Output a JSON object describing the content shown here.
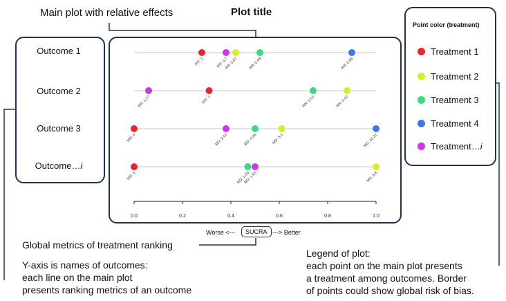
{
  "annotations": {
    "main_plot": "Main plot with relative effects",
    "plot_title": "Plot title",
    "global_metrics": "Global metrics of treatment ranking",
    "yaxis_line1": "Y-axis is names of outcomes:",
    "yaxis_line2": "each line on the main plot",
    "yaxis_line3": "presents ranking metrics of an outcome",
    "legend_line1": "Legend of plot:",
    "legend_line2": "each point on the main plot presents",
    "legend_line3": "a treatment among outcomes. Border",
    "legend_line4": "of points could show global risk of bias."
  },
  "outcomes": {
    "o1": "Outcome 1",
    "o2": "Outcome 2",
    "o3": "Outcome 3",
    "o4": "Outcome…",
    "o4_suffix": "i"
  },
  "legend": {
    "title": "Point color (treatment)",
    "items": [
      {
        "label": "Treatment 1",
        "color": "#e8272b"
      },
      {
        "label": "Treatment 2",
        "color": "#d8ee2a"
      },
      {
        "label": "Treatment 3",
        "color": "#35dd7e"
      },
      {
        "label": "Treatment 4",
        "color": "#3a78e3"
      },
      {
        "label": "Treatment…",
        "suffix": "i",
        "color": "#c93ae6"
      }
    ]
  },
  "axis": {
    "worse": "Worse <---",
    "sucra": "SUCRA",
    "better": "---> Better"
  },
  "chart_data": {
    "type": "scatter",
    "xlabel": "SUCRA",
    "xlim": [
      0,
      1
    ],
    "ticks": [
      "0.0",
      "0.2",
      "0.4",
      "0.6",
      "0.8",
      "1.0"
    ],
    "tick_values": [
      0,
      0.2,
      0.4,
      0.6,
      0.8,
      1.0
    ],
    "rows": [
      {
        "outcome": "Outcome 1",
        "points": [
          {
            "treatment": 1,
            "x": 0.28,
            "label": "RR: 1"
          },
          {
            "treatment": 5,
            "x": 0.38,
            "label": "RR: 0.7"
          },
          {
            "treatment": 2,
            "x": 0.42,
            "label": "RR: 0.87"
          },
          {
            "treatment": 3,
            "x": 0.52,
            "label": "RR: 0.48"
          },
          {
            "treatment": 4,
            "x": 0.9,
            "label": "RR: 0.86"
          }
        ]
      },
      {
        "outcome": "Outcome 2",
        "points": [
          {
            "treatment": 5,
            "x": 0.06,
            "label": "RR: 1.27"
          },
          {
            "treatment": 1,
            "x": 0.31,
            "label": "RR: 1"
          },
          {
            "treatment": 3,
            "x": 0.74,
            "label": "RR: 0.51"
          },
          {
            "treatment": 2,
            "x": 0.88,
            "label": "RR: 0.42"
          }
        ]
      },
      {
        "outcome": "Outcome 3",
        "points": [
          {
            "treatment": 1,
            "x": 0.0,
            "label": "MD: 0"
          },
          {
            "treatment": 5,
            "x": 0.38,
            "label": "MD: 3.42"
          },
          {
            "treatment": 3,
            "x": 0.5,
            "label": "MD: 4.06"
          },
          {
            "treatment": 2,
            "x": 0.61,
            "label": "MD: 5.1"
          },
          {
            "treatment": 4,
            "x": 1.0,
            "label": "MD: 10.22"
          }
        ]
      },
      {
        "outcome": "Outcome…i",
        "points": [
          {
            "treatment": 1,
            "x": 0.0,
            "label": "MD: 0"
          },
          {
            "treatment": 3,
            "x": 0.47,
            "label": "MD: 1.65"
          },
          {
            "treatment": 5,
            "x": 0.5,
            "label": "MD: 1.93"
          },
          {
            "treatment": 2,
            "x": 1.0,
            "label": "MD: 8.8"
          }
        ]
      }
    ]
  }
}
